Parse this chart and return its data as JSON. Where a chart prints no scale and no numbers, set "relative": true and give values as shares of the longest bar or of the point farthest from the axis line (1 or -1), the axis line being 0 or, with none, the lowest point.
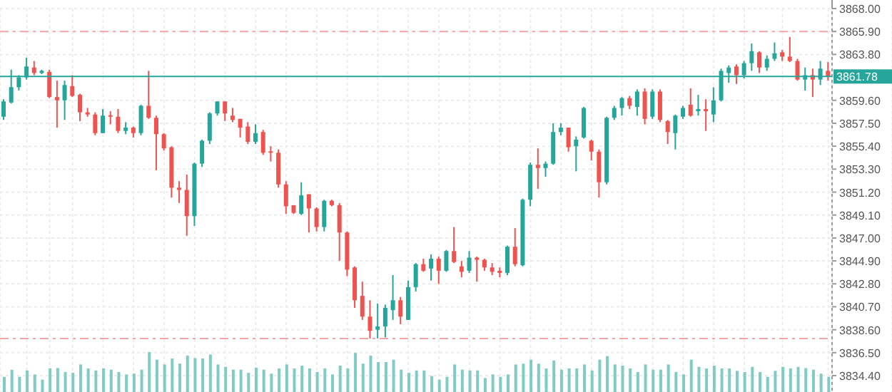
{
  "chart_data": [
    {
      "type": "candlestick",
      "categories": [
        null,
        null,
        null,
        null,
        null,
        null,
        null,
        null,
        null,
        null,
        null,
        null,
        null,
        null,
        null,
        null,
        null,
        null,
        null,
        null,
        null,
        null,
        null,
        null,
        null,
        null,
        null,
        null,
        null,
        null,
        null,
        null,
        null,
        null,
        null,
        null,
        null,
        null,
        null,
        null,
        null,
        null,
        null,
        null,
        null,
        null,
        null,
        null,
        null,
        null,
        null,
        null,
        null,
        null,
        null,
        null,
        null,
        null,
        null,
        null,
        null,
        null,
        null,
        null,
        null,
        null,
        null,
        null,
        null,
        null,
        null,
        null,
        null,
        null,
        null,
        null,
        null,
        null,
        null,
        null,
        null,
        null,
        null,
        null,
        null,
        null,
        null,
        null,
        null,
        null,
        null,
        null,
        null,
        null,
        null,
        null,
        null,
        null,
        null,
        null,
        null,
        null,
        null,
        null,
        null,
        null,
        null,
        null,
        null
      ],
      "ohlc": [
        [
          3858.1,
          3859.7,
          3857.8,
          3859.5
        ],
        [
          3859.4,
          3862.4,
          3859.3,
          3860.8
        ],
        [
          3860.8,
          3861.9,
          3860.5,
          3861.7
        ],
        [
          3861.7,
          3863.5,
          3861.5,
          3862.7
        ],
        [
          3862.6,
          3863.2,
          3861.9,
          3862.1
        ],
        [
          3862.1,
          3862.4,
          3862.0,
          3862.3
        ],
        [
          3862.2,
          3862.4,
          3859.8,
          3859.9
        ],
        [
          3859.9,
          3861.4,
          3857.1,
          3859.6
        ],
        [
          3859.6,
          3861.4,
          3857.8,
          3861.0
        ],
        [
          3860.9,
          3861.9,
          3859.9,
          3860.0
        ],
        [
          3860.1,
          3860.2,
          3857.7,
          3858.5
        ],
        [
          3858.5,
          3858.9,
          3858.1,
          3858.3
        ],
        [
          3858.3,
          3858.5,
          3856.4,
          3856.6
        ],
        [
          3856.6,
          3858.8,
          3856.6,
          3858.2
        ],
        [
          3858.2,
          3858.6,
          3857.4,
          3858.1
        ],
        [
          3858.1,
          3858.8,
          3856.6,
          3856.8
        ],
        [
          3856.8,
          3857.6,
          3856.5,
          3857.1
        ],
        [
          3857.1,
          3857.2,
          3856.2,
          3856.6
        ],
        [
          3856.6,
          3859.2,
          3856.4,
          3859.1
        ],
        [
          3859.1,
          3862.3,
          3857.9,
          3858.0
        ],
        [
          3858.0,
          3858.2,
          3853.2,
          3856.5
        ],
        [
          3856.5,
          3856.6,
          3855.0,
          3855.2
        ],
        [
          3855.3,
          3855.4,
          3850.7,
          3851.6
        ],
        [
          3851.6,
          3852.2,
          3850.2,
          3851.4
        ],
        [
          3851.4,
          3852.8,
          3847.2,
          3849.0
        ],
        [
          3849.0,
          3853.9,
          3848.1,
          3853.8
        ],
        [
          3853.8,
          3856.0,
          3853.5,
          3855.9
        ],
        [
          3855.9,
          3858.5,
          3855.6,
          3858.4
        ],
        [
          3858.4,
          3859.5,
          3858.2,
          3859.5
        ],
        [
          3859.5,
          3859.5,
          3857.7,
          3858.4
        ],
        [
          3858.2,
          3858.9,
          3857.6,
          3857.8
        ],
        [
          3857.9,
          3857.9,
          3856.2,
          3857.1
        ],
        [
          3857.2,
          3857.6,
          3855.6,
          3855.8
        ],
        [
          3855.8,
          3857.4,
          3855.6,
          3856.6
        ],
        [
          3856.7,
          3856.9,
          3854.6,
          3854.8
        ],
        [
          3854.9,
          3855.4,
          3854.0,
          3854.8
        ],
        [
          3854.8,
          3855.1,
          3851.6,
          3851.9
        ],
        [
          3851.9,
          3852.2,
          3849.2,
          3849.9
        ],
        [
          3850.0,
          3850.0,
          3849.2,
          3849.3
        ],
        [
          3849.2,
          3852.1,
          3849.1,
          3850.9
        ],
        [
          3851.0,
          3851.0,
          3847.5,
          3849.7
        ],
        [
          3849.7,
          3849.8,
          3847.6,
          3848.0
        ],
        [
          3848.0,
          3850.5,
          3847.6,
          3850.4
        ],
        [
          3850.4,
          3850.5,
          3849.9,
          3850.0
        ],
        [
          3850.0,
          3850.2,
          3844.9,
          3847.5
        ],
        [
          3847.5,
          3847.6,
          3843.5,
          3844.1
        ],
        [
          3844.3,
          3844.4,
          3840.6,
          3841.3
        ],
        [
          3841.7,
          3843.0,
          3839.5,
          3839.8
        ],
        [
          3839.8,
          3841.3,
          3837.8,
          3838.5
        ],
        [
          3838.6,
          3841.0,
          3837.8,
          3838.9
        ],
        [
          3838.9,
          3840.9,
          3837.9,
          3840.6
        ],
        [
          3840.4,
          3843.6,
          3839.5,
          3841.3
        ],
        [
          3841.3,
          3841.6,
          3839.1,
          3839.8
        ],
        [
          3839.5,
          3843.1,
          3839.5,
          3842.5
        ],
        [
          3842.5,
          3844.7,
          3842.1,
          3844.6
        ],
        [
          3844.6,
          3845.1,
          3843.9,
          3844.0
        ],
        [
          3844.2,
          3845.5,
          3843.1,
          3845.1
        ],
        [
          3845.1,
          3845.3,
          3842.8,
          3844.0
        ],
        [
          3844.0,
          3845.9,
          3843.9,
          3845.8
        ],
        [
          3845.8,
          3848.0,
          3844.7,
          3844.8
        ],
        [
          3844.4,
          3844.9,
          3843.4,
          3843.9
        ],
        [
          3844.0,
          3845.8,
          3843.8,
          3845.2
        ],
        [
          3845.2,
          3845.3,
          3843.0,
          3845.0
        ],
        [
          3845.0,
          3845.1,
          3844.0,
          3844.3
        ],
        [
          3844.3,
          3844.7,
          3843.6,
          3843.9
        ],
        [
          3844.0,
          3844.3,
          3843.4,
          3843.8
        ],
        [
          3843.8,
          3846.3,
          3843.6,
          3846.2
        ],
        [
          3846.2,
          3847.9,
          3844.4,
          3844.6
        ],
        [
          3844.5,
          3850.6,
          3844.4,
          3850.5
        ],
        [
          3850.5,
          3853.9,
          3849.9,
          3853.7
        ],
        [
          3853.7,
          3855.2,
          3851.5,
          3853.4
        ],
        [
          3853.4,
          3854.0,
          3852.6,
          3853.8
        ],
        [
          3853.8,
          3857.5,
          3853.7,
          3856.7
        ],
        [
          3856.7,
          3857.5,
          3856.4,
          3857.1
        ],
        [
          3857.1,
          3857.1,
          3854.9,
          3855.3
        ],
        [
          3855.4,
          3856.3,
          3853.1,
          3856.0
        ],
        [
          3856.2,
          3859.0,
          3856.1,
          3858.9
        ],
        [
          3855.9,
          3856.0,
          3854.1,
          3854.9
        ],
        [
          3854.9,
          3855.1,
          3850.7,
          3852.1
        ],
        [
          3852.1,
          3858.1,
          3851.9,
          3858.0
        ],
        [
          3858.0,
          3859.1,
          3857.8,
          3858.9
        ],
        [
          3858.9,
          3859.9,
          3858.2,
          3859.8
        ],
        [
          3859.8,
          3860.0,
          3858.8,
          3859.1
        ],
        [
          3859.0,
          3860.6,
          3858.2,
          3860.4
        ],
        [
          3860.4,
          3860.7,
          3857.4,
          3857.9
        ],
        [
          3858.1,
          3860.6,
          3857.9,
          3860.4
        ],
        [
          3860.4,
          3860.6,
          3857.6,
          3857.8
        ],
        [
          3857.7,
          3857.8,
          3855.6,
          3856.7
        ],
        [
          3856.6,
          3858.3,
          3855.1,
          3858.2
        ],
        [
          3858.1,
          3859.1,
          3857.9,
          3858.9
        ],
        [
          3859.2,
          3860.7,
          3858.1,
          3858.2
        ],
        [
          3858.6,
          3860.1,
          3858.2,
          3858.8
        ],
        [
          3858.8,
          3859.7,
          3856.8,
          3858.6
        ],
        [
          3858.3,
          3860.8,
          3857.6,
          3859.6
        ],
        [
          3859.6,
          3862.5,
          3859.5,
          3862.3
        ],
        [
          3862.1,
          3862.8,
          3861.2,
          3862.6
        ],
        [
          3862.7,
          3862.9,
          3861.1,
          3861.9
        ],
        [
          3861.9,
          3863.2,
          3861.6,
          3863.0
        ],
        [
          3863.0,
          3864.8,
          3862.3,
          3864.1
        ],
        [
          3864.0,
          3864.1,
          3862.1,
          3862.6
        ],
        [
          3862.6,
          3863.7,
          3862.3,
          3863.4
        ],
        [
          3863.4,
          3864.9,
          3863.2,
          3863.9
        ],
        [
          3864.0,
          3864.2,
          3863.2,
          3863.6
        ],
        [
          3863.6,
          3865.4,
          3863.1,
          3863.2
        ],
        [
          3863.2,
          3863.4,
          3861.4,
          3861.5
        ],
        [
          3861.5,
          3862.6,
          3860.5,
          3861.9
        ],
        [
          3861.9,
          3862.5,
          3859.9,
          3861.5
        ],
        [
          3861.5,
          3863.2,
          3861.0,
          3862.5
        ],
        [
          3862.3,
          3863.1,
          3861.4,
          3861.78
        ]
      ],
      "ylim": [
        3832.9,
        3868.0
      ],
      "yticks": [
        {
          "value": 3834.4,
          "label": "3834.40"
        },
        {
          "value": 3836.5,
          "label": "3836.50"
        },
        {
          "value": 3838.6,
          "label": "3838.60"
        },
        {
          "value": 3840.7,
          "label": "3840.70"
        },
        {
          "value": 3842.8,
          "label": "3842.80"
        },
        {
          "value": 3844.9,
          "label": "3844.90"
        },
        {
          "value": 3847.0,
          "label": "3847.00"
        },
        {
          "value": 3849.1,
          "label": "3849.10"
        },
        {
          "value": 3851.2,
          "label": "3851.20"
        },
        {
          "value": 3853.3,
          "label": "3853.30"
        },
        {
          "value": 3855.4,
          "label": "3855.40"
        },
        {
          "value": 3857.5,
          "label": "3857.50"
        },
        {
          "value": 3859.6,
          "label": "3859.60"
        },
        {
          "value": 3863.8,
          "label": "3863.80"
        },
        {
          "value": 3865.9,
          "label": "3865.90"
        },
        {
          "value": 3868.0,
          "label": "3868.00"
        }
      ],
      "ref_lines": [
        {
          "axis": "y",
          "value": 3865.9,
          "color": "#f4a6a6",
          "line_style": "dashed"
        },
        {
          "axis": "y",
          "value": 3837.8,
          "color": "#f4a6a6",
          "line_style": "dashed"
        },
        {
          "axis": "y",
          "value": 3861.78,
          "label": "3861.78",
          "color": "#26a69a",
          "line_style": "solid"
        }
      ],
      "grid": true,
      "tick_labels": "y"
    },
    {
      "type": "bar",
      "relative": true,
      "color": "#80cbc4",
      "categories": [
        null,
        null,
        null,
        null,
        null,
        null,
        null,
        null,
        null,
        null,
        null,
        null,
        null,
        null,
        null,
        null,
        null,
        null,
        null,
        null,
        null,
        null,
        null,
        null,
        null,
        null,
        null,
        null,
        null,
        null,
        null,
        null,
        null,
        null,
        null,
        null,
        null,
        null,
        null,
        null,
        null,
        null,
        null,
        null,
        null,
        null,
        null,
        null,
        null,
        null,
        null,
        null,
        null,
        null,
        null,
        null,
        null,
        null,
        null,
        null,
        null,
        null,
        null,
        null,
        null,
        null,
        null,
        null,
        null,
        null,
        null,
        null,
        null,
        null,
        null,
        null,
        null,
        null,
        null,
        null,
        null,
        null,
        null,
        null,
        null,
        null,
        null,
        null,
        null,
        null,
        null,
        null,
        null,
        null,
        null,
        null,
        null,
        null,
        null,
        null,
        null,
        null,
        null,
        null,
        null,
        null,
        null,
        null,
        null
      ],
      "values": [
        0.38,
        0.56,
        0.38,
        0.54,
        0.44,
        0.31,
        0.59,
        0.6,
        0.5,
        0.48,
        0.69,
        0.59,
        0.54,
        0.59,
        0.56,
        0.5,
        0.44,
        0.46,
        0.56,
        1,
        0.81,
        0.69,
        0.84,
        0.71,
        0.91,
        0.85,
        0.84,
        0.94,
        0.69,
        0.63,
        0.56,
        0.56,
        0.48,
        0.61,
        0.56,
        0.46,
        0.59,
        0.69,
        0.59,
        0.66,
        0.59,
        0.5,
        0.59,
        0.44,
        0.66,
        0.59,
        0.98,
        0.71,
        0.91,
        0.75,
        0.75,
        0.81,
        0.56,
        0.48,
        0.54,
        0.54,
        0.4,
        0.31,
        0.38,
        0.69,
        0.56,
        0.54,
        0.54,
        0.35,
        0.44,
        0.38,
        0.44,
        0.69,
        0.71,
        0.81,
        0.71,
        0.59,
        0.79,
        0.56,
        0.59,
        0.59,
        0.69,
        0.54,
        0.81,
        0.9,
        0.69,
        0.66,
        0.59,
        0.5,
        0.69,
        0.56,
        0.56,
        0.69,
        0.5,
        0.44,
        0.81,
        0.63,
        0.59,
        0.66,
        0.59,
        0.59,
        0.53,
        0.5,
        0.63,
        0.5,
        0.38,
        0.53,
        0.63,
        0.59,
        0.63,
        0.6,
        0.56,
        0.46,
        0.38
      ],
      "tick_labels": false
    }
  ]
}
